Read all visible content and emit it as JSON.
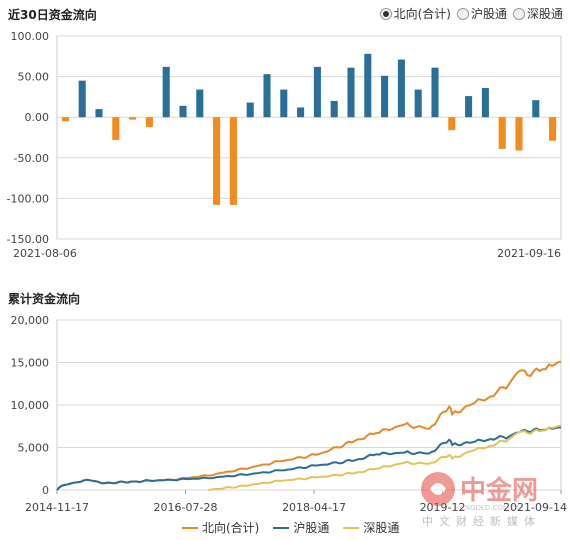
{
  "top": {
    "title": "近30日资金流向",
    "radios": [
      {
        "label": "北向(合计)",
        "selected": true
      },
      {
        "label": "沪股通",
        "selected": false
      },
      {
        "label": "深股通",
        "selected": false
      }
    ]
  },
  "bottom": {
    "title": "累计资金流向"
  },
  "legend": [
    {
      "label": "北向(合计)",
      "color": "#e8882a"
    },
    {
      "label": "沪股通",
      "color": "#2a6f97"
    },
    {
      "label": "深股通",
      "color": "#e3c458"
    }
  ],
  "watermark": {
    "logo": "中金网",
    "sub": "CNGOLD.COM.CN",
    "tagline": "中文财经新媒体"
  },
  "chart_data": [
    {
      "type": "bar",
      "title": "近30日资金流向",
      "ylim": [
        -150,
        100
      ],
      "yticks": [
        "100.00",
        "50.00",
        "0.00",
        "-50.00",
        "-100.00",
        "-150.00"
      ],
      "ytick_values": [
        100,
        50,
        0,
        -50,
        -100,
        -150
      ],
      "x_start_label": "2021-08-06",
      "x_end_label": "2021-09-16",
      "positive_color": "#2a6f97",
      "negative_color": "#f28c1e",
      "values": [
        -5,
        45,
        10,
        -28,
        -3,
        -12,
        62,
        14,
        34,
        -108,
        -108,
        18,
        53,
        34,
        12,
        62,
        20,
        61,
        78,
        51,
        71,
        34,
        61,
        -16,
        26,
        36,
        -39,
        -41,
        21,
        -29
      ]
    },
    {
      "type": "line",
      "title": "累计资金流向",
      "ylim": [
        0,
        20000
      ],
      "yticks": [
        "20,000",
        "15,000",
        "10,000",
        "5,000",
        "0"
      ],
      "ytick_values": [
        20000,
        15000,
        10000,
        5000,
        0
      ],
      "xticks": [
        "2014-11-17",
        "2016-07-28",
        "2018-04-17",
        "2019-12",
        "2021-09-14"
      ],
      "xlim": [
        "2014-11-17",
        "2021-09-14"
      ],
      "series": [
        {
          "name": "北向(合计)",
          "color": "#e8882a",
          "x": [
            "2014-11-17",
            "2014-12-10",
            "2015-04-15",
            "2015-07-10",
            "2015-12-01",
            "2016-06-01",
            "2016-12-01",
            "2017-06-01",
            "2017-12-01",
            "2018-06-01",
            "2018-12-01",
            "2019-03-15",
            "2019-08-01",
            "2019-12-01",
            "2020-03-10",
            "2020-03-25",
            "2020-07-01",
            "2020-10-01",
            "2021-01-01",
            "2021-02-20",
            "2021-04-01",
            "2021-06-15",
            "2021-08-01",
            "2021-09-14"
          ],
          "y": [
            0,
            500,
            1200,
            800,
            1000,
            1200,
            1700,
            2500,
            3400,
            4200,
            5800,
            6700,
            7700,
            7200,
            9800,
            8900,
            10100,
            11000,
            12500,
            14000,
            13500,
            14200,
            14600,
            15100
          ]
        },
        {
          "name": "沪股通",
          "color": "#2a6f97",
          "x": [
            "2014-11-17",
            "2014-12-10",
            "2015-04-15",
            "2015-07-10",
            "2015-12-01",
            "2016-06-01",
            "2016-12-01",
            "2017-06-01",
            "2017-12-01",
            "2018-06-01",
            "2018-12-01",
            "2019-03-15",
            "2019-08-01",
            "2019-12-01",
            "2020-03-10",
            "2020-03-25",
            "2020-07-01",
            "2020-10-01",
            "2021-01-01",
            "2021-02-20",
            "2021-04-01",
            "2021-06-15",
            "2021-08-01",
            "2021-09-14"
          ],
          "y": [
            0,
            500,
            1200,
            800,
            1000,
            1200,
            1400,
            1800,
            2300,
            2900,
            3500,
            4200,
            4400,
            4300,
            5900,
            5300,
            5600,
            6000,
            6300,
            6800,
            6900,
            7100,
            7200,
            7350
          ]
        },
        {
          "name": "深股通",
          "color": "#e3c458",
          "x": [
            "2016-12-05",
            "2017-06-01",
            "2017-12-01",
            "2018-06-01",
            "2018-12-01",
            "2019-03-15",
            "2019-08-01",
            "2019-12-01",
            "2020-03-10",
            "2020-03-25",
            "2020-07-01",
            "2020-10-01",
            "2021-01-01",
            "2021-02-20",
            "2021-04-01",
            "2021-06-15",
            "2021-08-01",
            "2021-09-14"
          ],
          "y": [
            0,
            500,
            1100,
            1500,
            2000,
            2500,
            3200,
            3100,
            4100,
            3700,
            4600,
            5200,
            6000,
            6800,
            6700,
            7000,
            7300,
            7550
          ]
        }
      ]
    }
  ]
}
